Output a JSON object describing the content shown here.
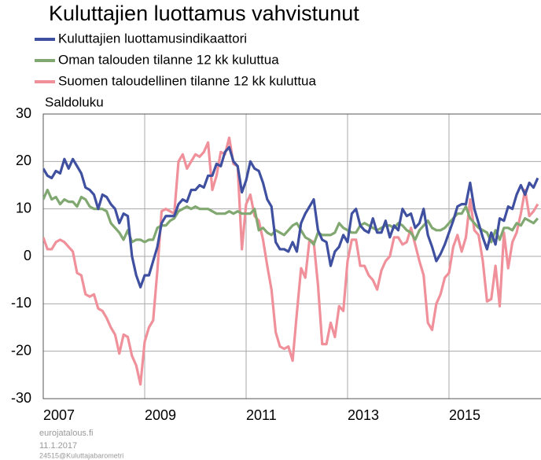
{
  "chart_data": {
    "type": "line",
    "title": "Kuluttajien luottamus vahvistunut",
    "ylabel": "Saldoluku",
    "footer": [
      "eurojatalous.fi",
      "11.1.2017",
      "24515@Kuluttajabarometri"
    ],
    "categories": [
      "2007",
      null,
      null,
      null,
      null,
      null,
      null,
      null,
      null,
      null,
      null,
      null,
      null,
      null,
      null,
      null,
      null,
      null,
      null,
      null,
      null,
      null,
      null,
      null,
      "2009",
      null,
      null,
      null,
      null,
      null,
      null,
      null,
      null,
      null,
      null,
      null,
      null,
      null,
      null,
      null,
      null,
      null,
      null,
      null,
      null,
      null,
      null,
      null,
      "2011",
      null,
      null,
      null,
      null,
      null,
      null,
      null,
      null,
      null,
      null,
      null,
      null,
      null,
      null,
      null,
      null,
      null,
      null,
      null,
      null,
      null,
      null,
      null,
      "2013",
      null,
      null,
      null,
      null,
      null,
      null,
      null,
      null,
      null,
      null,
      null,
      null,
      null,
      null,
      null,
      null,
      null,
      null,
      null,
      null,
      null,
      null,
      null,
      "2015",
      null,
      null,
      null,
      null,
      null,
      null,
      null,
      null,
      null,
      null,
      null,
      null,
      null,
      null,
      null,
      null,
      null,
      null,
      null,
      null,
      null
    ],
    "ylim": [
      -30,
      30
    ],
    "yticks": [
      -30,
      -20,
      -10,
      0,
      10,
      20,
      30
    ],
    "grid": true,
    "series": [
      {
        "name": "Kuluttajien luottamusindikaattori",
        "color": "#4050a0",
        "values": [
          18.5,
          17,
          16.5,
          18,
          17.5,
          20.5,
          18.5,
          20.5,
          19,
          17.5,
          14.5,
          14,
          13,
          10,
          13,
          12.5,
          11,
          10,
          7,
          9,
          8.5,
          0,
          -4,
          -6.5,
          -4,
          -4,
          -1,
          2,
          7,
          8.5,
          8.5,
          8.5,
          11,
          12,
          11.5,
          14,
          14,
          15,
          14.5,
          17,
          17,
          19.5,
          19,
          22,
          23,
          20,
          19,
          13.5,
          16,
          20,
          18.5,
          18,
          15.5,
          12,
          10.5,
          3,
          1.5,
          1.5,
          1,
          3,
          1,
          7,
          9,
          10.5,
          12,
          5.5,
          3.5,
          3,
          -2,
          1,
          2,
          4.5,
          3,
          9,
          10,
          6.5,
          5.5,
          5,
          8,
          5,
          5,
          7.5,
          4,
          6.5,
          5.5,
          10,
          8.5,
          9,
          6,
          7,
          10,
          4.5,
          2,
          -1,
          0.5,
          2.5,
          5,
          7.5,
          10.5,
          11,
          11,
          15.5,
          10,
          7,
          4,
          1.5,
          5,
          2.5,
          8,
          7.5,
          10.5,
          10,
          13,
          15,
          13,
          15.5,
          14.5,
          16.5
        ]
      },
      {
        "name": "Oman talouden tilanne 12 kk kuluttua",
        "color": "#80a870",
        "values": [
          12,
          14,
          12,
          12.5,
          11,
          12,
          11.5,
          11.5,
          10.5,
          12.5,
          12,
          10.5,
          10,
          10,
          10,
          9.5,
          7,
          6,
          5,
          3.5,
          5.5,
          3,
          3.5,
          3.5,
          3,
          3.5,
          3.5,
          6,
          6.5,
          6.5,
          7.5,
          8,
          9.5,
          10,
          10.5,
          10,
          10.5,
          10,
          10,
          10,
          9.5,
          9,
          9,
          9,
          9.5,
          9,
          9.5,
          9,
          9,
          9,
          10,
          5.5,
          6,
          5,
          4.5,
          5.5,
          5,
          4.5,
          5.5,
          6.5,
          7,
          5.5,
          4,
          3.5,
          2.5,
          5,
          4.5,
          4.5,
          4.5,
          5,
          7,
          6,
          5.5,
          5,
          5,
          6.5,
          7,
          6.5,
          6,
          5.5,
          6,
          6.5,
          6.5,
          6,
          7,
          6.5,
          5.5,
          5,
          3.5,
          5.5,
          6.5,
          7.5,
          6,
          5.5,
          5.5,
          6,
          7,
          8,
          9,
          9,
          10.5,
          8,
          7,
          6,
          5.5,
          5,
          3,
          5.5,
          3.5,
          6,
          6,
          5.5,
          7,
          6.5,
          8,
          7.5,
          7,
          8
        ]
      },
      {
        "name": "Suomen taloudellinen tilanne 12 kk kuluttua",
        "color": "#f0909a",
        "values": [
          4,
          1.5,
          1.5,
          3,
          3.5,
          3,
          2,
          1,
          -3.5,
          -4,
          -8,
          -8.5,
          -8,
          -11,
          -11.5,
          -13,
          -15,
          -16.5,
          -20.5,
          -16.5,
          -17,
          -21,
          -23,
          -27,
          -18,
          -15,
          -13.5,
          -3,
          9.5,
          10,
          9.5,
          9,
          20,
          21.5,
          18.5,
          20,
          21.5,
          21,
          22,
          24,
          14,
          17,
          22,
          21.5,
          25,
          19.5,
          19,
          1.5,
          11,
          13,
          8.5,
          7.5,
          3.5,
          -2,
          -7,
          -16,
          -19,
          -19.5,
          -19,
          -22,
          -12,
          -2.5,
          -4.5,
          3.5,
          3,
          -6,
          -18.5,
          -18.5,
          -14,
          -17,
          -10.5,
          -11.5,
          -1,
          3.5,
          3.5,
          -2,
          -2,
          -4,
          -5,
          -7,
          -3,
          -1,
          0,
          4,
          4,
          2.5,
          3,
          6,
          2.5,
          -1,
          -4,
          -14,
          -15.5,
          -10,
          -8,
          -4.5,
          -3.5,
          2,
          4.5,
          1,
          4,
          12,
          5.5,
          4.5,
          -1,
          -9.5,
          -9,
          -2,
          -10.5,
          5,
          -2.5,
          3,
          5,
          9,
          14,
          8.5,
          9.5,
          11
        ]
      }
    ]
  }
}
